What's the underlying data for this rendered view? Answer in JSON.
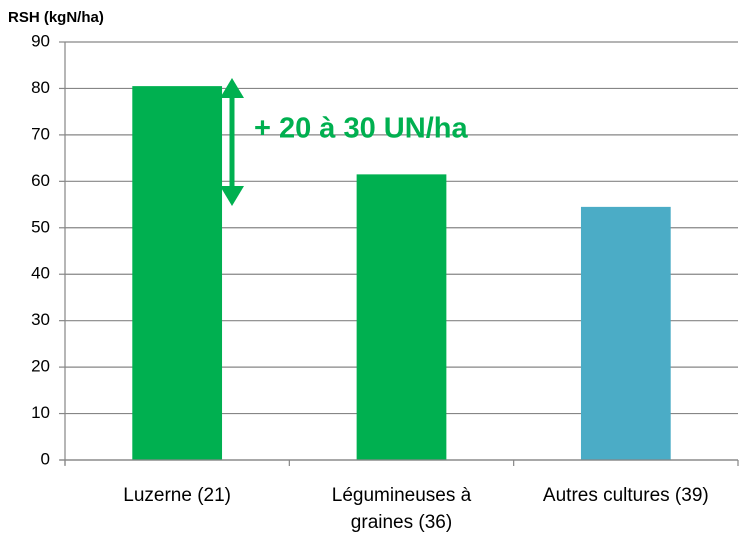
{
  "chart_data": {
    "type": "bar",
    "y_label": "RSH (kgN/ha)",
    "categories": [
      "Luzerne (21)",
      "Légumineuses à graines (36)",
      "Autres cultures (39)"
    ],
    "values": [
      80.5,
      61.5,
      54.5
    ],
    "colors": [
      "#00b050",
      "#00b050",
      "#4bacc6"
    ],
    "ylim": [
      0,
      90
    ],
    "yticks": [
      0,
      10,
      20,
      30,
      40,
      50,
      60,
      70,
      80,
      90
    ],
    "grid": true,
    "annotation": "+ 20 à 30 UN/ha"
  }
}
